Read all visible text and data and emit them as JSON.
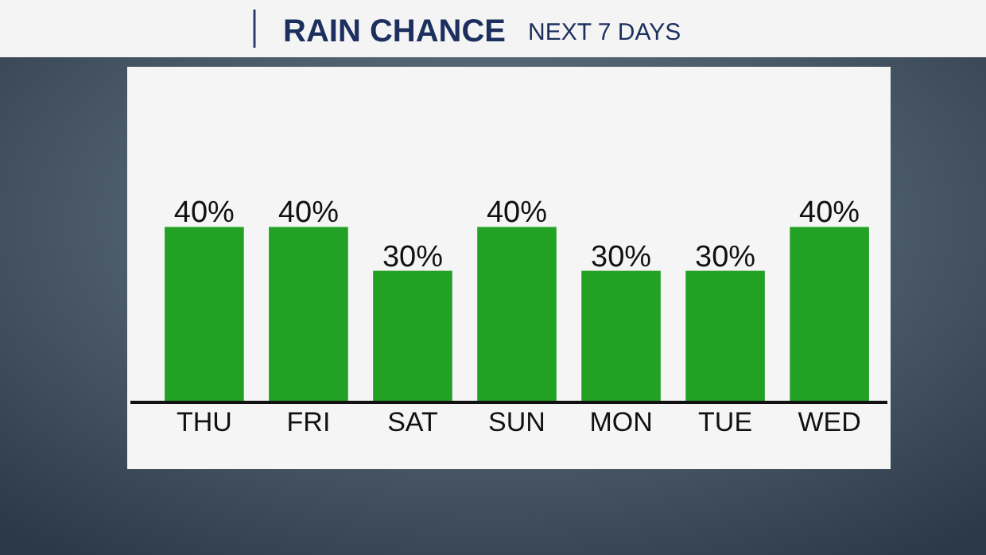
{
  "chart_data": {
    "type": "bar",
    "title": "RAIN CHANCE",
    "subtitle": "NEXT 7 DAYS",
    "categories": [
      "THU",
      "FRI",
      "SAT",
      "SUN",
      "MON",
      "TUE",
      "WED"
    ],
    "values": [
      40,
      40,
      30,
      40,
      30,
      30,
      40
    ],
    "value_labels": [
      "40%",
      "40%",
      "30%",
      "40%",
      "30%",
      "30%",
      "40%"
    ],
    "color": "#23a125"
  }
}
